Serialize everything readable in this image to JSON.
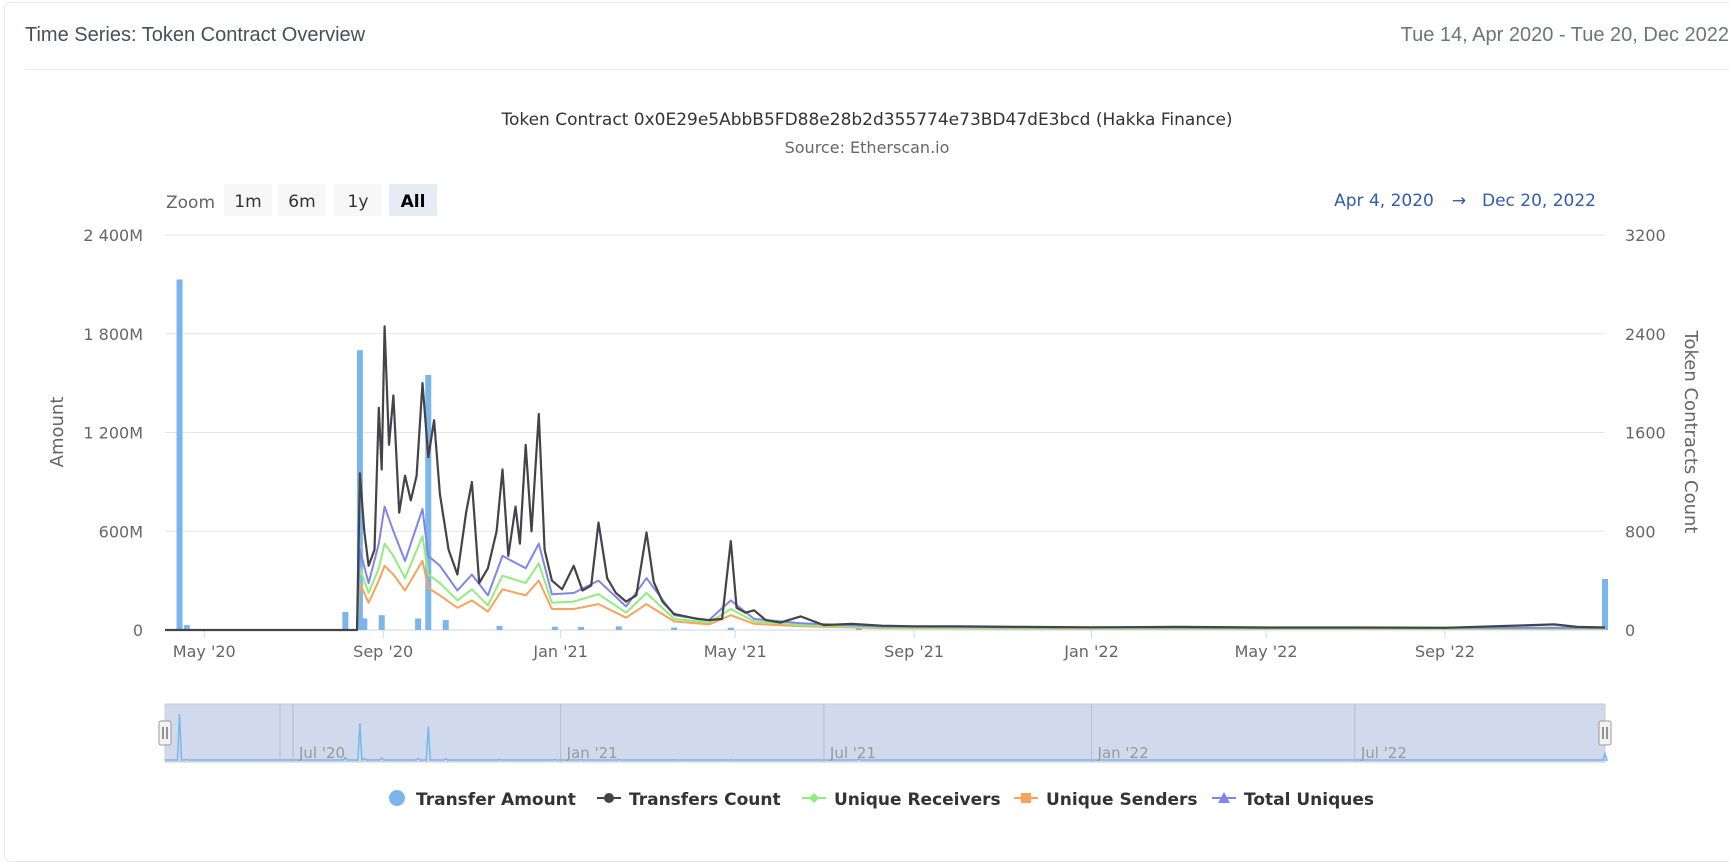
{
  "header": {
    "title": "Time Series: Token Contract Overview",
    "date_range": "Tue 14, Apr 2020 - Tue 20, Dec 2022"
  },
  "zoom": {
    "label": "Zoom",
    "buttons": [
      {
        "label": "1m",
        "active": false
      },
      {
        "label": "6m",
        "active": false
      },
      {
        "label": "1y",
        "active": false
      },
      {
        "label": "All",
        "active": true
      }
    ]
  },
  "range_selector": {
    "from": "Apr 4, 2020",
    "arrow": "→",
    "to": "Dec 20, 2022"
  },
  "colors": {
    "transfer_amount": "#7cb5ec",
    "transfers_count": "#434348",
    "unique_receivers": "#90ed7d",
    "unique_senders": "#f7a35c",
    "total_uniques": "#8085e9",
    "navigator_mask": "#ccd6eb",
    "gridline": "#e6e6e6",
    "range_text": "#335cad"
  },
  "chart_data": {
    "type": "line",
    "title": "Token Contract 0x0E29e5AbbB5FD88e28b2d355774e73BD47dE3bcd (Hakka Finance)",
    "subtitle": "Source: Etherscan.io",
    "x_range": [
      "2020-04-04",
      "2022-12-20"
    ],
    "x_ticks": [
      {
        "date": "2020-05-01",
        "label": "May '20"
      },
      {
        "date": "2020-09-01",
        "label": "Sep '20"
      },
      {
        "date": "2021-01-01",
        "label": "Jan '21"
      },
      {
        "date": "2021-05-01",
        "label": "May '21"
      },
      {
        "date": "2021-09-01",
        "label": "Sep '21"
      },
      {
        "date": "2022-01-01",
        "label": "Jan '22"
      },
      {
        "date": "2022-05-01",
        "label": "May '22"
      },
      {
        "date": "2022-09-01",
        "label": "Sep '22"
      }
    ],
    "y_left": {
      "title": "Amount",
      "min": 0,
      "max": 2400,
      "ticks": [
        0,
        600,
        1200,
        1800,
        2400
      ],
      "tick_labels": [
        "0",
        "600M",
        "1 200M",
        "1 800M",
        "2 400M"
      ]
    },
    "y_right": {
      "title": "Token Contracts Count",
      "min": 0,
      "max": 3200,
      "ticks": [
        0,
        800,
        1600,
        2400,
        3200
      ],
      "tick_labels": [
        "0",
        "800",
        "1600",
        "2400",
        "3200"
      ]
    },
    "grid": true,
    "legend_position": "bottom",
    "navigator_ticks": [
      {
        "date": "2020-07-01",
        "label": "Jul '20"
      },
      {
        "date": "2021-01-01",
        "label": "Jan '21"
      },
      {
        "date": "2021-07-01",
        "label": "Jul '21"
      },
      {
        "date": "2022-01-01",
        "label": "Jan '22"
      },
      {
        "date": "2022-07-01",
        "label": "Jul '22"
      }
    ],
    "series": [
      {
        "name": "Transfer Amount",
        "type": "column",
        "axis": "left",
        "unit": "M",
        "points": [
          [
            "2020-04-14",
            2130
          ],
          [
            "2020-04-19",
            30
          ],
          [
            "2020-08-06",
            110
          ],
          [
            "2020-08-16",
            1700
          ],
          [
            "2020-08-19",
            70
          ],
          [
            "2020-08-31",
            90
          ],
          [
            "2020-09-25",
            70
          ],
          [
            "2020-10-02",
            1550
          ],
          [
            "2020-10-14",
            60
          ],
          [
            "2020-11-20",
            25
          ],
          [
            "2020-12-28",
            20
          ],
          [
            "2021-01-15",
            18
          ],
          [
            "2021-02-10",
            22
          ],
          [
            "2021-03-20",
            15
          ],
          [
            "2021-04-28",
            14
          ],
          [
            "2021-07-25",
            40
          ],
          [
            "2022-12-20",
            310
          ]
        ]
      },
      {
        "name": "Transfers Count",
        "type": "line",
        "axis": "right",
        "points": [
          [
            "2020-08-14",
            0
          ],
          [
            "2020-08-16",
            1270
          ],
          [
            "2020-08-19",
            800
          ],
          [
            "2020-08-22",
            520
          ],
          [
            "2020-08-26",
            650
          ],
          [
            "2020-08-29",
            1800
          ],
          [
            "2020-08-31",
            1300
          ],
          [
            "2020-09-02",
            2460
          ],
          [
            "2020-09-05",
            1500
          ],
          [
            "2020-09-08",
            1900
          ],
          [
            "2020-09-12",
            950
          ],
          [
            "2020-09-16",
            1250
          ],
          [
            "2020-09-20",
            1050
          ],
          [
            "2020-09-24",
            1250
          ],
          [
            "2020-09-28",
            2000
          ],
          [
            "2020-10-02",
            1400
          ],
          [
            "2020-10-06",
            1700
          ],
          [
            "2020-10-10",
            1100
          ],
          [
            "2020-10-16",
            650
          ],
          [
            "2020-10-22",
            450
          ],
          [
            "2020-10-28",
            950
          ],
          [
            "2020-11-01",
            1200
          ],
          [
            "2020-11-06",
            380
          ],
          [
            "2020-11-12",
            500
          ],
          [
            "2020-11-18",
            800
          ],
          [
            "2020-11-22",
            1300
          ],
          [
            "2020-11-26",
            600
          ],
          [
            "2020-12-01",
            1000
          ],
          [
            "2020-12-04",
            700
          ],
          [
            "2020-12-08",
            1500
          ],
          [
            "2020-12-12",
            800
          ],
          [
            "2020-12-17",
            1750
          ],
          [
            "2020-12-21",
            650
          ],
          [
            "2020-12-26",
            400
          ],
          [
            "2021-01-02",
            330
          ],
          [
            "2021-01-10",
            520
          ],
          [
            "2021-01-16",
            320
          ],
          [
            "2021-01-22",
            360
          ],
          [
            "2021-01-27",
            870
          ],
          [
            "2021-02-02",
            420
          ],
          [
            "2021-02-08",
            300
          ],
          [
            "2021-02-15",
            230
          ],
          [
            "2021-02-22",
            280
          ],
          [
            "2021-03-01",
            790
          ],
          [
            "2021-03-06",
            390
          ],
          [
            "2021-03-12",
            230
          ],
          [
            "2021-03-20",
            130
          ],
          [
            "2021-03-28",
            110
          ],
          [
            "2021-04-05",
            90
          ],
          [
            "2021-04-13",
            80
          ],
          [
            "2021-04-22",
            90
          ],
          [
            "2021-04-28",
            720
          ],
          [
            "2021-05-02",
            180
          ],
          [
            "2021-05-08",
            140
          ],
          [
            "2021-05-14",
            160
          ],
          [
            "2021-05-22",
            80
          ],
          [
            "2021-06-01",
            60
          ],
          [
            "2021-06-15",
            110
          ],
          [
            "2021-07-01",
            40
          ],
          [
            "2021-07-20",
            50
          ],
          [
            "2021-08-10",
            35
          ],
          [
            "2021-09-01",
            30
          ],
          [
            "2021-10-01",
            30
          ],
          [
            "2021-11-15",
            25
          ],
          [
            "2022-01-01",
            22
          ],
          [
            "2022-03-01",
            25
          ],
          [
            "2022-05-01",
            20
          ],
          [
            "2022-07-01",
            20
          ],
          [
            "2022-09-01",
            18
          ],
          [
            "2022-11-15",
            45
          ],
          [
            "2022-12-01",
            25
          ],
          [
            "2022-12-20",
            20
          ]
        ]
      },
      {
        "name": "Unique Receivers",
        "type": "line",
        "axis": "right",
        "points": [
          [
            "2020-08-14",
            0
          ],
          [
            "2020-08-16",
            500
          ],
          [
            "2020-08-22",
            300
          ],
          [
            "2020-08-29",
            500
          ],
          [
            "2020-09-02",
            700
          ],
          [
            "2020-09-08",
            600
          ],
          [
            "2020-09-16",
            420
          ],
          [
            "2020-09-28",
            760
          ],
          [
            "2020-10-02",
            450
          ],
          [
            "2020-10-10",
            380
          ],
          [
            "2020-10-22",
            240
          ],
          [
            "2020-11-01",
            330
          ],
          [
            "2020-11-12",
            200
          ],
          [
            "2020-11-22",
            440
          ],
          [
            "2020-12-08",
            380
          ],
          [
            "2020-12-17",
            540
          ],
          [
            "2020-12-26",
            220
          ],
          [
            "2021-01-10",
            230
          ],
          [
            "2021-01-27",
            290
          ],
          [
            "2021-02-15",
            140
          ],
          [
            "2021-03-01",
            300
          ],
          [
            "2021-03-20",
            90
          ],
          [
            "2021-04-13",
            60
          ],
          [
            "2021-04-28",
            170
          ],
          [
            "2021-05-14",
            70
          ],
          [
            "2021-06-15",
            40
          ],
          [
            "2021-08-10",
            20
          ],
          [
            "2021-11-15",
            15
          ],
          [
            "2022-05-01",
            12
          ],
          [
            "2022-12-20",
            12
          ]
        ]
      },
      {
        "name": "Unique Senders",
        "type": "line",
        "axis": "right",
        "points": [
          [
            "2020-08-14",
            0
          ],
          [
            "2020-08-16",
            380
          ],
          [
            "2020-08-22",
            220
          ],
          [
            "2020-08-29",
            400
          ],
          [
            "2020-09-02",
            520
          ],
          [
            "2020-09-08",
            450
          ],
          [
            "2020-09-16",
            320
          ],
          [
            "2020-09-28",
            560
          ],
          [
            "2020-10-02",
            340
          ],
          [
            "2020-10-10",
            280
          ],
          [
            "2020-10-22",
            180
          ],
          [
            "2020-11-01",
            240
          ],
          [
            "2020-11-12",
            150
          ],
          [
            "2020-11-22",
            330
          ],
          [
            "2020-12-08",
            280
          ],
          [
            "2020-12-17",
            400
          ],
          [
            "2020-12-26",
            170
          ],
          [
            "2021-01-10",
            170
          ],
          [
            "2021-01-27",
            210
          ],
          [
            "2021-02-15",
            100
          ],
          [
            "2021-03-01",
            210
          ],
          [
            "2021-03-20",
            70
          ],
          [
            "2021-04-13",
            45
          ],
          [
            "2021-04-28",
            120
          ],
          [
            "2021-05-14",
            50
          ],
          [
            "2021-06-15",
            30
          ],
          [
            "2021-08-10",
            15
          ],
          [
            "2021-11-15",
            12
          ],
          [
            "2022-05-01",
            10
          ],
          [
            "2022-12-20",
            10
          ]
        ]
      },
      {
        "name": "Total Uniques",
        "type": "line",
        "axis": "right",
        "points": [
          [
            "2020-08-14",
            0
          ],
          [
            "2020-08-16",
            650
          ],
          [
            "2020-08-22",
            380
          ],
          [
            "2020-08-29",
            700
          ],
          [
            "2020-09-02",
            1000
          ],
          [
            "2020-09-08",
            800
          ],
          [
            "2020-09-16",
            560
          ],
          [
            "2020-09-28",
            980
          ],
          [
            "2020-10-02",
            600
          ],
          [
            "2020-10-10",
            520
          ],
          [
            "2020-10-22",
            320
          ],
          [
            "2020-11-01",
            450
          ],
          [
            "2020-11-12",
            280
          ],
          [
            "2020-11-22",
            600
          ],
          [
            "2020-12-08",
            500
          ],
          [
            "2020-12-17",
            700
          ],
          [
            "2020-12-26",
            290
          ],
          [
            "2021-01-10",
            300
          ],
          [
            "2021-01-27",
            400
          ],
          [
            "2021-02-15",
            190
          ],
          [
            "2021-03-01",
            420
          ],
          [
            "2021-03-20",
            120
          ],
          [
            "2021-04-13",
            80
          ],
          [
            "2021-04-28",
            240
          ],
          [
            "2021-05-14",
            90
          ],
          [
            "2021-06-15",
            55
          ],
          [
            "2021-08-10",
            28
          ],
          [
            "2021-11-15",
            22
          ],
          [
            "2022-05-01",
            18
          ],
          [
            "2022-12-20",
            18
          ]
        ]
      }
    ]
  }
}
